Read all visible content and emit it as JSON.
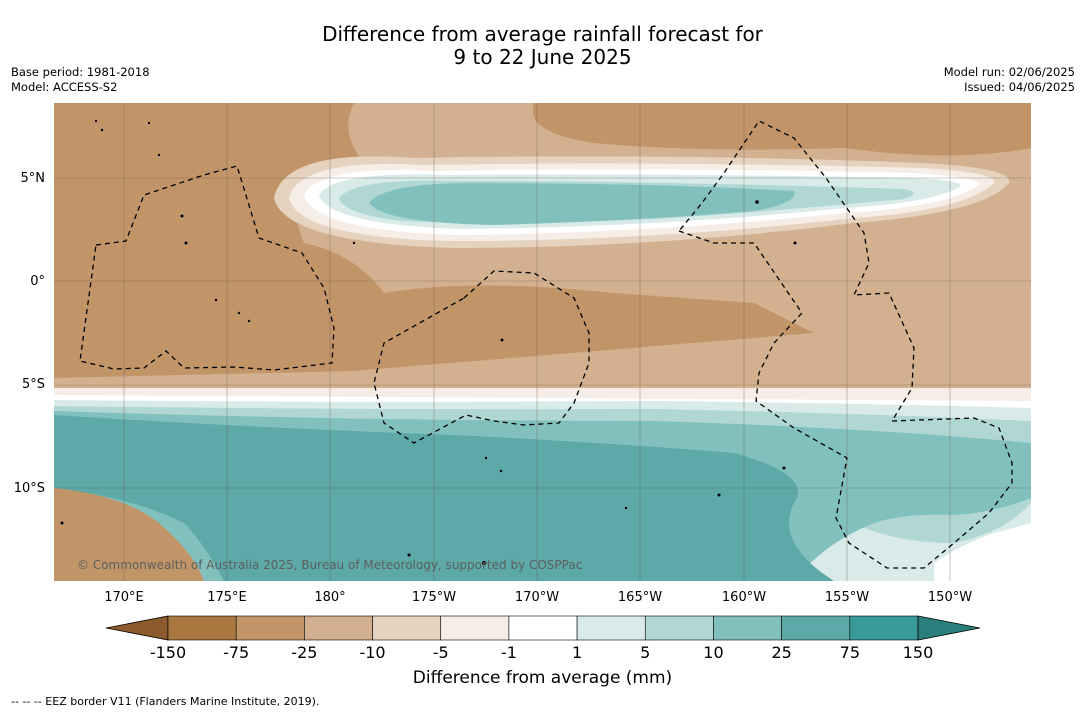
{
  "title_line1": "Difference from average rainfall forecast for",
  "title_line2": "9 to 22 June 2025",
  "base_period": "Base period: 1981-2018",
  "model": "Model: ACCESS-S2",
  "model_run": "Model run: 02/06/2025",
  "issued": "Issued: 04/06/2025",
  "lat_labels": [
    "5°N",
    "0°",
    "5°S",
    "10°S"
  ],
  "lon_labels": [
    "170°E",
    "175°E",
    "180°",
    "175°W",
    "170°W",
    "165°W",
    "160°W",
    "155°W",
    "150°W"
  ],
  "copyright": "© Commonwealth of Australia 2025, Bureau of Meteorology, supported by COSPPac",
  "colorbar": {
    "ticks": [
      "-150",
      "-75",
      "-25",
      "-10",
      "-5",
      "-1",
      "1",
      "5",
      "10",
      "25",
      "75",
      "150"
    ],
    "colors": [
      "#8c5a2c",
      "#a97840",
      "#c29569",
      "#d3b190",
      "#e6d3bf",
      "#f5ede6",
      "#ffffff",
      "#d8ebe9",
      "#b0d7d4",
      "#82c0bd",
      "#5ca9a8",
      "#389b97",
      "#2a7f7c"
    ],
    "label": "Difference from average (mm)"
  },
  "footnote": "--  --  -- EEZ border V11 (Flanders Marine Institute, 2019)."
}
